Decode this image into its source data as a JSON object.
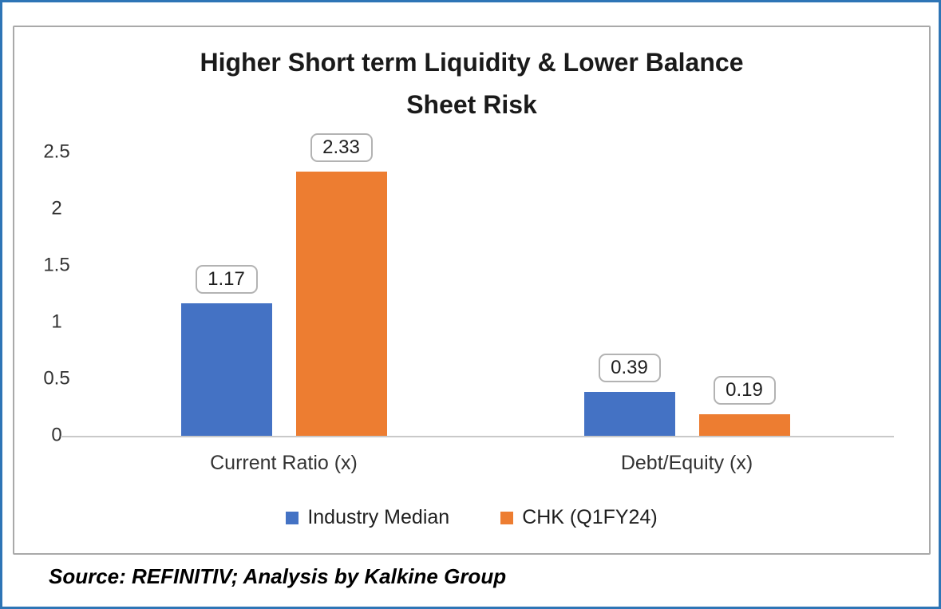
{
  "chart_data": {
    "type": "bar",
    "title": "Higher Short term Liquidity & Lower Balance Sheet Risk",
    "title_lines": [
      "Higher Short term Liquidity & Lower Balance",
      "Sheet Risk"
    ],
    "categories": [
      "Current Ratio (x)",
      "Debt/Equity (x)"
    ],
    "series": [
      {
        "name": "Industry Median",
        "color": "#4472C4",
        "values": [
          1.17,
          0.39
        ]
      },
      {
        "name": "CHK (Q1FY24)",
        "color": "#ED7D31",
        "values": [
          2.33,
          0.19
        ]
      }
    ],
    "data_labels": [
      "1.17",
      "2.33",
      "0.39",
      "0.19"
    ],
    "y_ticks": [
      "2.5",
      "2",
      "1.5",
      "1",
      "0.5",
      "0"
    ],
    "ylim": [
      0,
      2.5
    ],
    "grid": false,
    "legend_position": "bottom"
  },
  "source_note": "Source: REFINITIV; Analysis by Kalkine Group",
  "colors": {
    "frame_border": "#2E75B6",
    "chart_border": "#A9A9A9",
    "series_blue": "#4472C4",
    "series_orange": "#ED7D31"
  }
}
